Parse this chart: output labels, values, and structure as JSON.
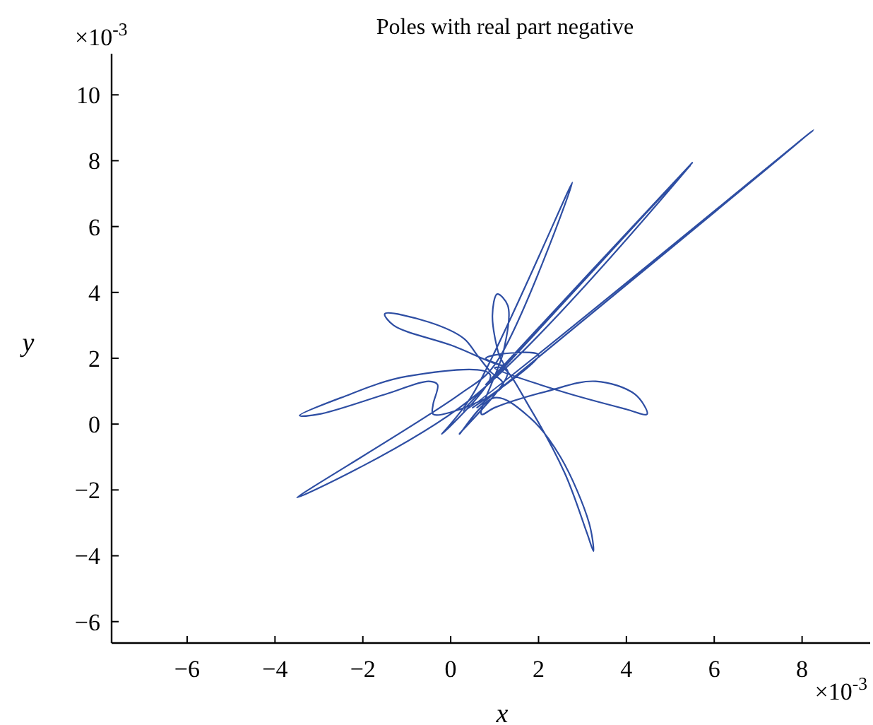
{
  "chart_data": {
    "type": "line",
    "title": "Poles with real part negative",
    "xlabel": "x",
    "ylabel": "y",
    "annotations": [
      "×10$^{-3}$",
      "×10$^{-3}$"
    ],
    "xlim": [
      -7.72,
      9.55
    ],
    "ylim": [
      -6.65,
      11.25
    ],
    "xticks": [
      {
        "value": -6,
        "label": "−6"
      },
      {
        "value": -4,
        "label": "−4"
      },
      {
        "value": -2,
        "label": "−2"
      },
      0,
      2,
      4,
      6,
      8
    ],
    "yticks": [
      {
        "value": -6,
        "label": "−6"
      },
      {
        "value": -4,
        "label": "−4"
      },
      {
        "value": -2,
        "label": "−2"
      },
      0,
      2,
      4,
      6,
      8,
      10
    ],
    "grid": false,
    "marker": "none",
    "line_style": "solid",
    "series": [
      {
        "color": "#2e4ea3",
        "x": [
          0.6,
          8.26,
          0.3,
          1.2,
          5.5,
          0.8,
          1.3,
          5.45,
          0.4,
          -3.5,
          0.2,
          1.0,
          2.77,
          0.5,
          -0.2,
          0.9,
          -1.0,
          -2.5,
          -3.44,
          -3.0,
          -1.5,
          -0.5,
          -0.3,
          -0.4,
          -0.4,
          0.5,
          1.2,
          0.9,
          0.6,
          0.3,
          -0.5,
          -1.5,
          -1.3,
          0,
          1.2,
          1.1,
          0.95,
          1.06,
          1.3,
          1.2,
          0.7,
          1.0,
          2.2,
          3.3,
          4.2,
          4.47,
          4.0,
          2.5,
          1.0,
          1.2,
          1.8,
          2.6,
          3.1,
          3.25,
          3.15,
          2.5,
          1.8,
          1.0,
          0.2,
          1.3,
          0.8,
          2.0,
          0.5
        ],
        "values": [
          0.5,
          8.93,
          0.4,
          1.7,
          7.94,
          1.2,
          1.9,
          7.85,
          0.7,
          -2.23,
          0.9,
          1.8,
          7.34,
          0.9,
          -0.3,
          1.5,
          1.45,
          0.8,
          0.26,
          0.3,
          0.9,
          1.3,
          1.2,
          0.6,
          0.3,
          0.6,
          1.2,
          1.6,
          2.1,
          2.6,
          3.1,
          3.35,
          3.0,
          2.4,
          1.8,
          2.1,
          3.3,
          3.95,
          3.6,
          2.2,
          0.3,
          0.5,
          1.0,
          1.3,
          0.9,
          0.3,
          0.45,
          1.0,
          1.7,
          1.7,
          0.5,
          -1.5,
          -3.3,
          -3.86,
          -3.0,
          -1.0,
          0.2,
          0.8,
          -0.3,
          1.6,
          2.0,
          2.1,
          0.5
        ]
      }
    ]
  }
}
